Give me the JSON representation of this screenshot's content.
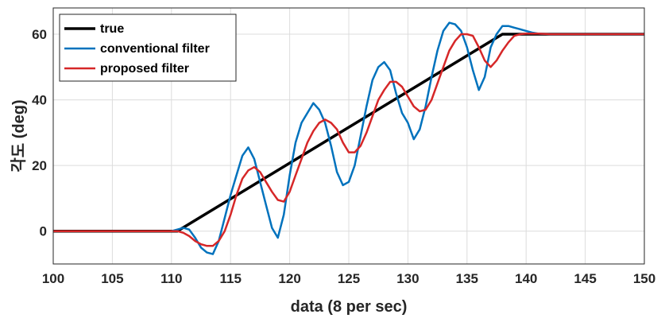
{
  "chart_data": {
    "type": "line",
    "title": "",
    "xlabel": "data (8 per sec)",
    "ylabel": "각도 (deg)",
    "xlim": [
      100,
      150
    ],
    "ylim": [
      -10,
      68
    ],
    "xticks": [
      100,
      105,
      110,
      115,
      120,
      125,
      130,
      135,
      140,
      145,
      150
    ],
    "yticks": [
      0,
      20,
      40,
      60
    ],
    "grid": true,
    "legend_position": "top-left",
    "series": [
      {
        "name": "true",
        "color": "#000000",
        "x": [
          100,
          110.5,
          138,
          150
        ],
        "y": [
          0,
          0,
          60,
          60
        ]
      },
      {
        "name": "conventional filter",
        "color": "#0072BD",
        "x": [
          100,
          105,
          110,
          110.5,
          111,
          111.5,
          112,
          112.5,
          113,
          113.5,
          114,
          114.5,
          115,
          115.5,
          116,
          116.5,
          117,
          117.5,
          118,
          118.5,
          119,
          119.5,
          120,
          120.5,
          121,
          121.5,
          122,
          122.5,
          123,
          123.5,
          124,
          124.5,
          125,
          125.5,
          126,
          126.5,
          127,
          127.5,
          128,
          128.5,
          129,
          129.5,
          130,
          130.5,
          131,
          131.5,
          132,
          132.5,
          133,
          133.5,
          134,
          134.5,
          135,
          135.5,
          136,
          136.5,
          137,
          137.5,
          138,
          138.5,
          139,
          139.5,
          140,
          140.5,
          141,
          142,
          143,
          145,
          150
        ],
        "y": [
          0,
          0,
          0,
          0.5,
          1,
          0.5,
          -2,
          -5,
          -6.5,
          -7,
          -3,
          4,
          11,
          17,
          23,
          25.5,
          22,
          15,
          8,
          1,
          -2,
          5,
          17,
          27,
          33,
          36,
          39,
          37,
          33,
          26,
          18,
          14,
          15,
          20,
          29,
          38,
          46,
          50,
          51.5,
          49,
          42,
          36,
          33,
          28,
          31,
          38,
          47,
          55,
          61,
          63.5,
          63,
          61,
          56,
          49,
          43,
          47,
          56,
          60,
          62.5,
          62.5,
          62,
          61.5,
          61,
          60.5,
          60.2,
          60,
          60,
          60,
          60
        ]
      },
      {
        "name": "proposed filter",
        "color": "#D62728",
        "x": [
          100,
          105,
          110,
          110.5,
          111,
          111.5,
          112,
          112.5,
          113,
          113.5,
          114,
          114.5,
          115,
          115.5,
          116,
          116.5,
          117,
          117.5,
          118,
          118.5,
          119,
          119.5,
          120,
          120.5,
          121,
          121.5,
          122,
          122.5,
          123,
          123.5,
          124,
          124.5,
          125,
          125.5,
          126,
          126.5,
          127,
          127.5,
          128,
          128.5,
          129,
          129.5,
          130,
          130.5,
          131,
          131.5,
          132,
          132.5,
          133,
          133.5,
          134,
          134.5,
          135,
          135.5,
          136,
          136.5,
          137,
          137.5,
          138,
          138.5,
          139,
          139.5,
          140,
          140.5,
          141,
          142,
          143,
          145,
          150
        ],
        "y": [
          0,
          0,
          0,
          0,
          -0.5,
          -1.5,
          -3,
          -4,
          -4.5,
          -4.5,
          -3,
          0,
          5,
          11,
          16,
          18.5,
          19.5,
          18,
          15,
          12,
          9.5,
          9,
          12,
          17,
          22,
          27,
          30.5,
          33,
          34,
          33,
          31,
          27,
          24,
          24,
          26,
          30,
          35,
          40,
          43,
          45.5,
          45.5,
          44,
          41,
          38,
          36.5,
          37,
          40,
          45,
          50,
          55,
          58,
          60,
          60,
          59.5,
          56,
          52,
          50,
          52,
          55,
          57.5,
          59.5,
          60,
          60.2,
          60.2,
          60.2,
          60,
          60,
          60,
          60
        ]
      }
    ]
  }
}
